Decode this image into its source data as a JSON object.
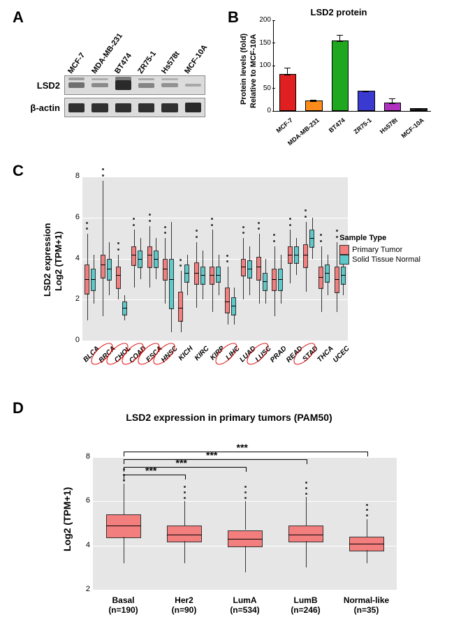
{
  "panel_labels": {
    "A": "A",
    "B": "B",
    "C": "C",
    "D": "D"
  },
  "panelA": {
    "lanes": [
      "MCF-7",
      "MDA-MB-231",
      "BT474",
      "ZR75-1",
      "Hs578t",
      "MCF-10A"
    ],
    "row_labels": [
      "LSD2",
      "β-actin"
    ],
    "lsd2_intensity": [
      0.45,
      0.25,
      0.95,
      0.3,
      0.2,
      0.05
    ],
    "actin_intensity": [
      0.9,
      0.9,
      0.9,
      0.9,
      0.9,
      0.95
    ],
    "strip_bg": "#dcdcdc",
    "band_color": "#1a1a1a"
  },
  "panelB": {
    "title": "LSD2 protein",
    "ylabel_line1": "Protein levels (fold)",
    "ylabel_line2": "Relative to MCF-10A",
    "categories": [
      "MCF-7",
      "MDA-MB-231",
      "BT474",
      "ZR75-1",
      "Hs578t",
      "MCF-10A"
    ],
    "values": [
      78,
      20,
      153,
      41,
      15,
      3
    ],
    "errors": [
      18,
      5,
      14,
      4,
      12,
      2
    ],
    "colors": [
      "#e02020",
      "#ff8c1a",
      "#1fa81f",
      "#3a3ad1",
      "#b030c0",
      "#202020"
    ],
    "ylim": [
      0,
      200
    ],
    "ytick_step": 50
  },
  "panelC": {
    "ylabel_line1": "LSD2 expression",
    "ylabel_line2": "Log2 (TPM+1)",
    "ylim": [
      0,
      8
    ],
    "ytick_step": 2,
    "legend_title": "Sample Type",
    "legend_items": [
      {
        "label": "Primary Tumor",
        "color": "#f37e7e"
      },
      {
        "label": "Solid Tissue Normal",
        "color": "#5fc8c8"
      }
    ],
    "bg_color": "#e6e6e6",
    "categories": [
      "BLCA",
      "BRCA",
      "CHOL",
      "COAD",
      "ESCA",
      "HNSC",
      "KICH",
      "KIRC",
      "KIRP",
      "LIHC",
      "LUAD",
      "LUSC",
      "PRAD",
      "READ",
      "STAD",
      "THCA",
      "UCEC"
    ],
    "circled": [
      "BRCA",
      "CHOL",
      "COAD",
      "ESCA",
      "HNSC",
      "LIHC",
      "LUSC",
      "STAD"
    ],
    "tumor": [
      [
        2.3,
        3.0,
        3.7,
        1.0,
        5.2
      ],
      [
        3.1,
        3.7,
        4.2,
        1.2,
        7.8
      ],
      [
        2.6,
        3.2,
        3.6,
        2.0,
        4.2
      ],
      [
        3.7,
        4.2,
        4.6,
        2.6,
        5.4
      ],
      [
        3.6,
        4.2,
        4.6,
        2.6,
        5.6
      ],
      [
        3.0,
        3.5,
        4.0,
        1.8,
        5.0
      ],
      [
        1.0,
        1.6,
        2.4,
        0.4,
        3.4
      ],
      [
        2.8,
        3.3,
        3.8,
        1.6,
        4.8
      ],
      [
        2.8,
        3.2,
        3.6,
        1.4,
        5.4
      ],
      [
        1.4,
        1.9,
        2.6,
        0.8,
        3.6
      ],
      [
        3.2,
        3.6,
        4.0,
        2.0,
        5.0
      ],
      [
        3.0,
        3.6,
        4.1,
        1.8,
        5.2
      ],
      [
        2.5,
        3.0,
        3.5,
        1.2,
        4.6
      ],
      [
        3.8,
        4.2,
        4.6,
        2.8,
        5.4
      ],
      [
        3.6,
        4.2,
        4.7,
        2.4,
        5.8
      ],
      [
        2.6,
        3.1,
        3.6,
        1.4,
        4.6
      ],
      [
        2.4,
        3.0,
        3.6,
        1.4,
        4.8
      ]
    ],
    "normal": [
      [
        2.5,
        3.0,
        3.5,
        1.8,
        4.2
      ],
      [
        3.0,
        3.5,
        4.0,
        2.2,
        4.8
      ],
      [
        1.3,
        1.6,
        1.9,
        1.0,
        2.2
      ],
      [
        3.6,
        4.0,
        4.4,
        3.0,
        5.0
      ],
      [
        3.6,
        4.0,
        4.4,
        3.0,
        5.0
      ],
      [
        1.6,
        3.0,
        4.0,
        0.4,
        5.8
      ],
      [
        2.9,
        3.3,
        3.7,
        2.2,
        4.2
      ],
      [
        2.8,
        3.2,
        3.6,
        2.0,
        4.4
      ],
      [
        2.9,
        3.2,
        3.6,
        2.2,
        4.2
      ],
      [
        1.3,
        1.7,
        2.1,
        0.8,
        2.6
      ],
      [
        3.1,
        3.5,
        3.9,
        2.2,
        4.6
      ],
      [
        2.5,
        2.9,
        3.3,
        1.8,
        4.0
      ],
      [
        2.5,
        3.0,
        3.5,
        1.8,
        4.2
      ],
      [
        3.8,
        4.2,
        4.6,
        3.2,
        5.0
      ],
      [
        4.6,
        5.0,
        5.4,
        4.0,
        6.0
      ],
      [
        2.9,
        3.3,
        3.7,
        2.2,
        4.2
      ],
      [
        2.8,
        3.2,
        3.6,
        2.2,
        4.2
      ]
    ]
  },
  "panelD": {
    "title": "LSD2 expression in primary tumors (PAM50)",
    "ylabel": "Log2 (TPM+1)",
    "ylim": [
      2,
      8
    ],
    "ytick_step": 2,
    "bg_color": "#e6e6e6",
    "box_color": "#f37e7e",
    "categories": [
      "Basal\n(n=190)",
      "Her2\n(n=90)",
      "LumA\n(n=534)",
      "LumB\n(n=246)",
      "Normal-like\n(n=35)"
    ],
    "boxes": [
      [
        4.4,
        4.9,
        5.4,
        3.2,
        6.8
      ],
      [
        4.2,
        4.5,
        4.9,
        3.2,
        6.0
      ],
      [
        4.0,
        4.3,
        4.7,
        2.8,
        6.0
      ],
      [
        4.2,
        4.5,
        4.9,
        3.0,
        6.2
      ],
      [
        3.8,
        4.1,
        4.4,
        3.2,
        5.2
      ]
    ],
    "sig": [
      {
        "from": 0,
        "to": 1,
        "label": "***",
        "y": 7.2
      },
      {
        "from": 0,
        "to": 2,
        "label": "***",
        "y": 7.55
      },
      {
        "from": 0,
        "to": 3,
        "label": "***",
        "y": 7.9
      },
      {
        "from": 0,
        "to": 4,
        "label": "***",
        "y": 8.25
      }
    ]
  }
}
